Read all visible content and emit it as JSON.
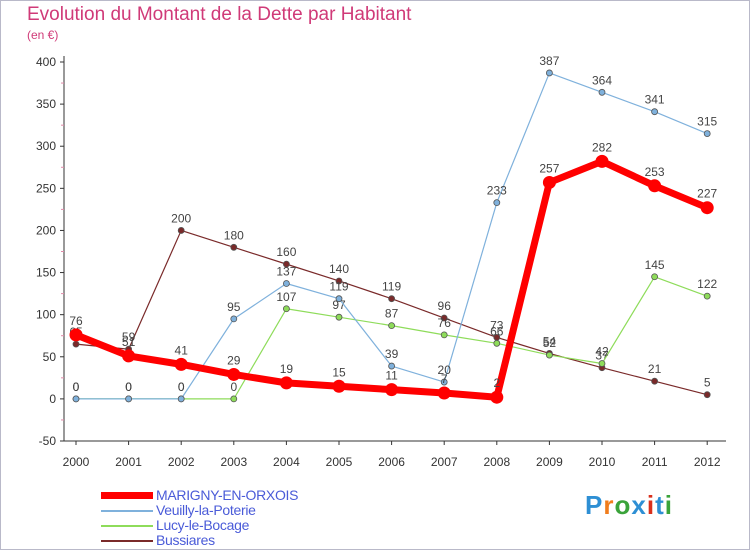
{
  "header": {
    "title": "Evolution du Montant de la Dette par Habitant",
    "subtitle": "(en €)"
  },
  "logo": {
    "text": "Proxiti",
    "colors": [
      "#2e8fd4",
      "#f07d1c",
      "#3aa33a",
      "#2e8fd4",
      "#d9301c",
      "#2e8fd4",
      "#3aa33a"
    ]
  },
  "chart_data": {
    "type": "line",
    "title": "Evolution du Montant de la Dette par Habitant",
    "ylabel": "(en €)",
    "xlabel": "",
    "x": [
      "2000",
      "2001",
      "2002",
      "2003",
      "2004",
      "2005",
      "2006",
      "2007",
      "2008",
      "2009",
      "2010",
      "2011",
      "2012"
    ],
    "ylim": [
      -50,
      400
    ],
    "yticks": [
      -50,
      0,
      50,
      100,
      150,
      200,
      250,
      300,
      350,
      400
    ],
    "grid": false,
    "legend_position": "bottom-left",
    "series": [
      {
        "name": "Bussiares",
        "color": "#7a2a2a",
        "values": [
          65,
          59,
          200,
          180,
          160,
          140,
          119,
          96,
          73,
          54,
          37,
          21,
          5
        ]
      },
      {
        "name": "Lucy-le-Bocage",
        "color": "#8edc5a",
        "values": [
          0,
          0,
          0,
          0,
          107,
          97,
          87,
          76,
          66,
          52,
          42,
          145,
          122
        ]
      },
      {
        "name": "Veuilly-la-Poterie",
        "color": "#7fb1dc",
        "values": [
          0,
          0,
          0,
          95,
          137,
          119,
          39,
          20,
          233,
          387,
          364,
          341,
          315
        ]
      },
      {
        "name": "MARIGNY-EN-ORXOIS",
        "color": "#ff0000",
        "values": [
          76,
          51,
          41,
          29,
          19,
          15,
          11,
          7,
          2,
          257,
          282,
          253,
          227
        ]
      }
    ]
  }
}
